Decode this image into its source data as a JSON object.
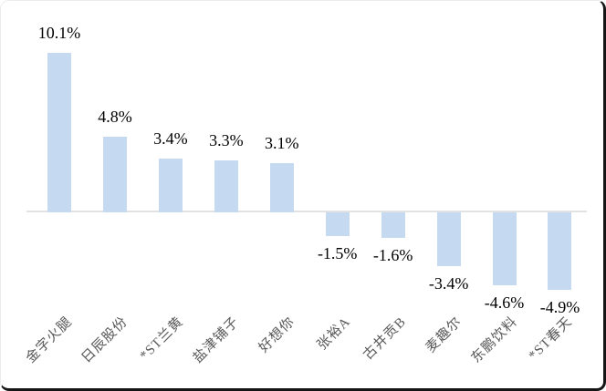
{
  "chart_data": {
    "type": "bar",
    "title": "",
    "xlabel": "",
    "ylabel": "",
    "categories": [
      "金字火腿",
      "日辰股份",
      "*ST兰黄",
      "盐津铺子",
      "好想你",
      "张裕A",
      "古井贡B",
      "麦趣尔",
      "东鹏饮料",
      "*ST春天"
    ],
    "values": [
      10.1,
      4.8,
      3.4,
      3.3,
      3.1,
      -1.5,
      -1.6,
      -3.4,
      -4.6,
      -4.9
    ],
    "data_labels": [
      "10.1%",
      "4.8%",
      "3.4%",
      "3.3%",
      "3.1%",
      "-1.5%",
      "-1.6%",
      "-3.4%",
      "-4.6%",
      "-4.9%"
    ],
    "baseline": 0,
    "ylim": [
      -6,
      11
    ],
    "grid": false,
    "legend": null,
    "data_label_position": "outside-end",
    "category_label_rotation_deg": -45,
    "colors": {
      "bar_fill": "#c5d9f1",
      "axis_line": "#e2e2e2",
      "data_label": "#000000",
      "category_label": "#595959",
      "frame_border_dark": "#151515",
      "frame_border_light": "#ececec",
      "background": "#ffffff"
    }
  }
}
